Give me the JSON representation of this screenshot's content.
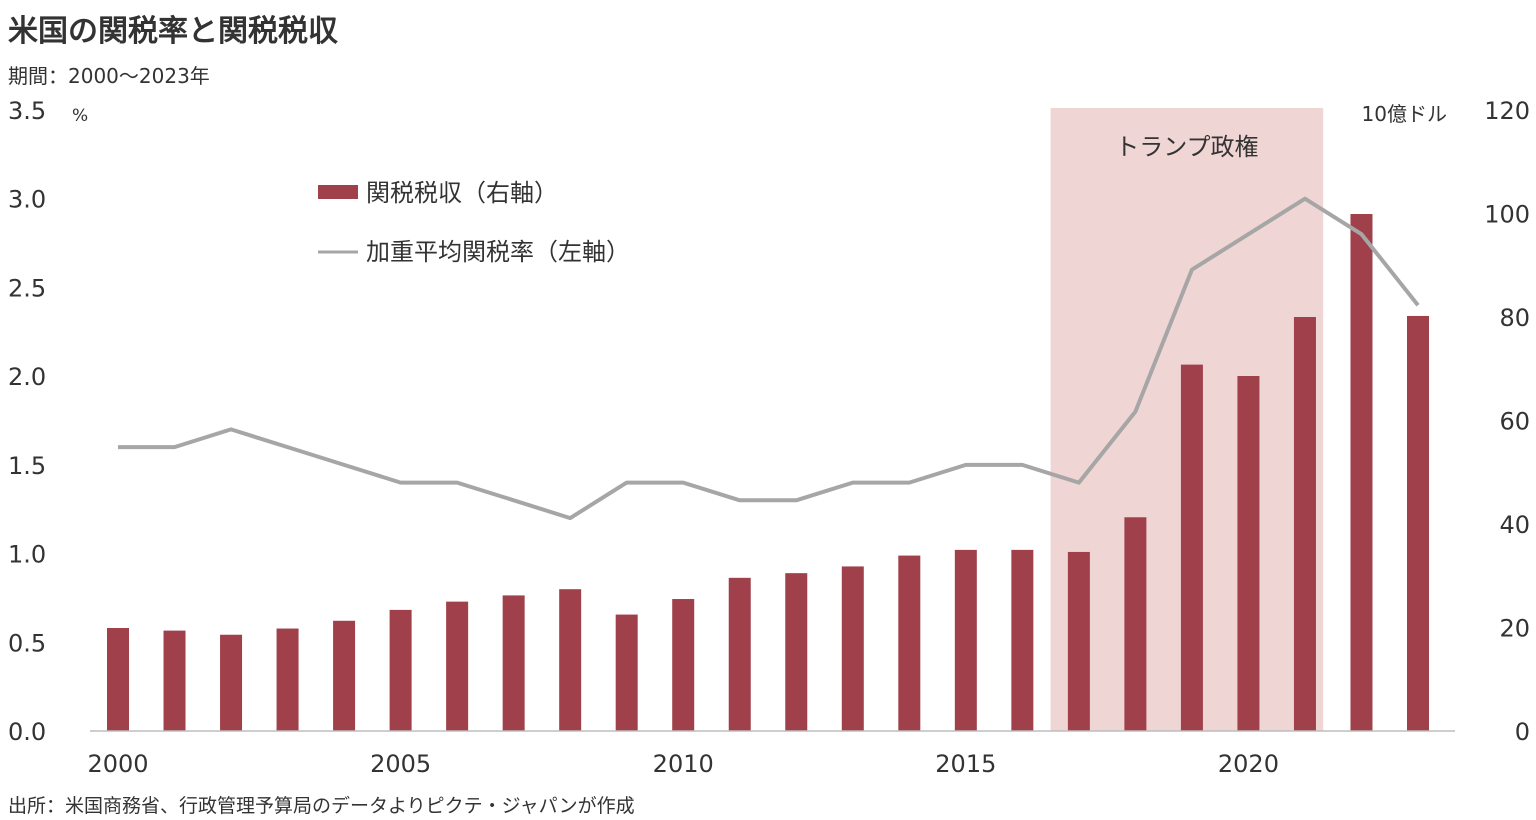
{
  "header": {
    "title": "米国の関税率と関税税収",
    "period": "期間：2000～2023年"
  },
  "footer": {
    "source": "出所：米国商務省、行政管理予算局のデータよりピクテ・ジャパンが作成"
  },
  "colors": {
    "bar": "#a0404a",
    "line": "#a6a6a6",
    "shade": "#f0d5d5",
    "text": "#333333"
  },
  "chart_data": {
    "type": "bar+line",
    "x": [
      2000,
      2001,
      2002,
      2003,
      2004,
      2005,
      2006,
      2007,
      2008,
      2009,
      2010,
      2011,
      2012,
      2013,
      2014,
      2015,
      2016,
      2017,
      2018,
      2019,
      2020,
      2021,
      2022,
      2023
    ],
    "series": [
      {
        "name": "関税税収（右軸）",
        "type": "bar",
        "axis": "right",
        "values": [
          19.9,
          19.4,
          18.6,
          19.8,
          21.3,
          23.4,
          25.0,
          26.2,
          27.4,
          22.5,
          25.5,
          29.6,
          30.5,
          31.8,
          33.9,
          35.0,
          35.0,
          34.6,
          41.3,
          70.8,
          68.6,
          80.0,
          99.9,
          80.2
        ]
      },
      {
        "name": "加重平均関税率（左軸）",
        "type": "line",
        "axis": "left",
        "values": [
          1.6,
          1.6,
          1.7,
          1.6,
          1.5,
          1.4,
          1.4,
          1.3,
          1.2,
          1.4,
          1.4,
          1.3,
          1.3,
          1.4,
          1.4,
          1.5,
          1.5,
          1.4,
          1.8,
          2.6,
          2.8,
          3.0,
          2.8,
          2.4
        ]
      }
    ],
    "y_left": {
      "unit": "%",
      "ylim": [
        0,
        3.5
      ],
      "ticks": [
        "0.0",
        "0.5",
        "1.0",
        "1.5",
        "2.0",
        "2.5",
        "3.0",
        "3.5"
      ]
    },
    "y_right": {
      "unit": "10億ドル",
      "ylim": [
        0,
        120
      ],
      "ticks": [
        "0",
        "20",
        "40",
        "60",
        "80",
        "100",
        "120"
      ]
    },
    "x_ticks": [
      "2000",
      "2005",
      "2010",
      "2015",
      "2020"
    ],
    "shaded_region": {
      "label": "トランプ政権",
      "from": 2017,
      "to": 2021
    },
    "legend": "upper-left",
    "grid": false
  }
}
